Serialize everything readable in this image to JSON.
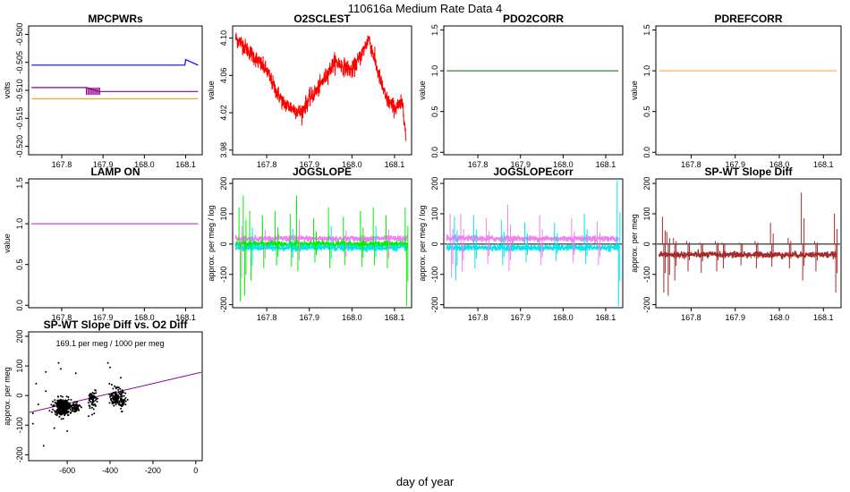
{
  "figure": {
    "suptitle": "110616a   Medium Rate Data 4",
    "xlabel": "day of year"
  },
  "chart_data": [
    {
      "id": "mpcpwrs",
      "type": "line",
      "title": "MPCPWRs",
      "ylabel": "volts",
      "xlim": [
        167.72,
        168.14
      ],
      "ylim": [
        -0.5215,
        -0.4985
      ],
      "xticks": [
        167.8,
        167.9,
        168.0,
        168.1
      ],
      "xtick_labels": [
        "167.8",
        "167.9",
        "168.0",
        "168.1"
      ],
      "yticks": [
        -0.52,
        -0.515,
        -0.51,
        -0.505,
        -0.5
      ],
      "ytick_labels": [
        "-0.520",
        "-0.515",
        "-0.510",
        "-0.505",
        "-0.500"
      ],
      "series": [
        {
          "name": "blue",
          "color": "#0000ff",
          "x": [
            167.727,
            167.9,
            168.098,
            168.1,
            168.13
          ],
          "y": [
            -0.5055,
            -0.5055,
            -0.5055,
            -0.5045,
            -0.5055
          ]
        },
        {
          "name": "purple",
          "color": "#8b008b",
          "x": [
            167.727,
            167.86,
            167.89,
            168.13
          ],
          "y": [
            -0.5095,
            -0.5095,
            -0.5102,
            -0.5102
          ]
        },
        {
          "name": "orange",
          "color": "#f4a62a",
          "x": [
            167.727,
            168.13
          ],
          "y": [
            -0.5115,
            -0.5115
          ]
        }
      ]
    },
    {
      "id": "o2sclest",
      "type": "line",
      "title": "O2SCLEST",
      "ylabel": "value",
      "xlim": [
        167.72,
        168.14
      ],
      "ylim": [
        3.975,
        4.113
      ],
      "xticks": [
        167.8,
        167.9,
        168.0,
        168.1
      ],
      "xtick_labels": [
        "167.8",
        "167.9",
        "168.0",
        "168.1"
      ],
      "yticks": [
        3.98,
        4.02,
        4.06,
        4.1
      ],
      "ytick_labels": [
        "3.98",
        "4.02",
        "4.06",
        "4.10"
      ],
      "series": [
        {
          "name": "O2SCLEST",
          "color": "#ff0000",
          "x": [
            167.727,
            167.74,
            167.76,
            167.78,
            167.8,
            167.82,
            167.84,
            167.86,
            167.88,
            167.9,
            167.92,
            167.94,
            167.96,
            167.98,
            168.0,
            168.02,
            168.04,
            168.06,
            168.08,
            168.1,
            168.12,
            168.127
          ],
          "y": [
            4.1,
            4.095,
            4.085,
            4.075,
            4.065,
            4.045,
            4.03,
            4.025,
            4.02,
            4.035,
            4.045,
            4.06,
            4.075,
            4.07,
            4.065,
            4.08,
            4.1,
            4.065,
            4.035,
            4.025,
            4.03,
            3.99
          ]
        }
      ]
    },
    {
      "id": "pdo2corr",
      "type": "line",
      "title": "PDO2CORR",
      "ylabel": "value",
      "xlim": [
        167.72,
        168.14
      ],
      "ylim": [
        -0.03,
        1.55
      ],
      "xticks": [
        167.8,
        167.9,
        168.0,
        168.1
      ],
      "xtick_labels": [
        "167.8",
        "167.9",
        "168.0",
        "168.1"
      ],
      "yticks": [
        0.0,
        0.5,
        1.0,
        1.5
      ],
      "ytick_labels": [
        "0.0",
        "0.5",
        "1.0",
        "1.5"
      ],
      "series": [
        {
          "name": "PDO2CORR",
          "color": "#006400",
          "x": [
            167.727,
            168.13
          ],
          "y": [
            1.0,
            1.0
          ]
        }
      ]
    },
    {
      "id": "pdrefcorr",
      "type": "line",
      "title": "PDREFCORR",
      "ylabel": "value",
      "xlim": [
        167.72,
        168.14
      ],
      "ylim": [
        -0.03,
        1.55
      ],
      "xticks": [
        167.8,
        167.9,
        168.0,
        168.1
      ],
      "xtick_labels": [
        "167.8",
        "167.9",
        "168.0",
        "168.1"
      ],
      "yticks": [
        0.0,
        0.5,
        1.0,
        1.5
      ],
      "ytick_labels": [
        "0.0",
        "0.5",
        "1.0",
        "1.5"
      ],
      "series": [
        {
          "name": "PDREFCORR",
          "color": "#f4a62a",
          "x": [
            167.727,
            168.13
          ],
          "y": [
            1.0,
            1.0
          ]
        }
      ]
    },
    {
      "id": "lampon",
      "type": "line",
      "title": "LAMP ON",
      "ylabel": "value",
      "xlim": [
        167.72,
        168.14
      ],
      "ylim": [
        -0.03,
        1.55
      ],
      "xticks": [
        167.8,
        167.9,
        168.0,
        168.1
      ],
      "xtick_labels": [
        "167.8",
        "167.9",
        "168.0",
        "168.1"
      ],
      "yticks": [
        0.0,
        0.5,
        1.0,
        1.5
      ],
      "ytick_labels": [
        "0.0",
        "0.5",
        "1.0",
        "1.5"
      ],
      "series": [
        {
          "name": "LAMP ON",
          "color": "#a020f0",
          "x": [
            167.727,
            168.13
          ],
          "y": [
            1.0,
            1.0
          ]
        }
      ]
    },
    {
      "id": "jogslope",
      "type": "line",
      "title": "JOGSLOPE",
      "ylabel": "approx. per meg / log",
      "xlim": [
        167.72,
        168.14
      ],
      "ylim": [
        -210,
        215
      ],
      "xticks": [
        167.8,
        167.9,
        168.0,
        168.1
      ],
      "xtick_labels": [
        "167.8",
        "167.9",
        "168.0",
        "168.1"
      ],
      "yticks": [
        -200,
        -100,
        0,
        100,
        200
      ],
      "ytick_labels": [
        "-200",
        "-100",
        "0",
        "100",
        "200"
      ],
      "baseline_series": [
        {
          "name": "violet",
          "color": "#ee82ee",
          "level": 18
        },
        {
          "name": "green",
          "color": "#00ee00",
          "level": 0
        },
        {
          "name": "cyan",
          "color": "#00e5ee",
          "level": -12
        }
      ],
      "spikes": [
        {
          "x": 167.735,
          "up": 120,
          "down": -190
        },
        {
          "x": 167.745,
          "up": 160,
          "down": -170
        },
        {
          "x": 167.76,
          "up": 110,
          "down": -120
        },
        {
          "x": 167.79,
          "up": 95,
          "down": -80
        },
        {
          "x": 167.82,
          "up": 110,
          "down": -70
        },
        {
          "x": 167.855,
          "up": 100,
          "down": -75
        },
        {
          "x": 167.87,
          "up": 160,
          "down": -90
        },
        {
          "x": 167.91,
          "up": 85,
          "down": -60
        },
        {
          "x": 167.945,
          "up": 120,
          "down": -80
        },
        {
          "x": 167.98,
          "up": 90,
          "down": -70
        },
        {
          "x": 168.02,
          "up": 110,
          "down": -75
        },
        {
          "x": 168.05,
          "up": 120,
          "down": -70
        },
        {
          "x": 168.08,
          "up": 95,
          "down": -80
        },
        {
          "x": 168.125,
          "up": 120,
          "down": -205
        }
      ]
    },
    {
      "id": "jogslopecorr",
      "type": "line",
      "title": "JOGSLOPEcorr",
      "ylabel": "approx. per meg / log",
      "xlim": [
        167.72,
        168.14
      ],
      "ylim": [
        -210,
        215
      ],
      "xticks": [
        167.8,
        167.9,
        168.0,
        168.1
      ],
      "xtick_labels": [
        "167.8",
        "167.9",
        "168.0",
        "168.1"
      ],
      "yticks": [
        -200,
        -100,
        0,
        100,
        200
      ],
      "ytick_labels": [
        "-200",
        "-100",
        "0",
        "100",
        "200"
      ],
      "hline": 0,
      "baseline_series": [
        {
          "name": "violet",
          "color": "#ee82ee",
          "level": 18
        },
        {
          "name": "cyan",
          "color": "#00e5ee",
          "level": -12
        }
      ],
      "spikes": [
        {
          "x": 167.735,
          "up": 100,
          "down": -110
        },
        {
          "x": 167.745,
          "up": 90,
          "down": -120
        },
        {
          "x": 167.76,
          "up": 100,
          "down": -90
        },
        {
          "x": 167.79,
          "up": 95,
          "down": -80
        },
        {
          "x": 167.82,
          "up": 85,
          "down": -65
        },
        {
          "x": 167.855,
          "up": 80,
          "down": -70
        },
        {
          "x": 167.87,
          "up": 130,
          "down": -90
        },
        {
          "x": 167.91,
          "up": 70,
          "down": -60
        },
        {
          "x": 167.945,
          "up": 95,
          "down": -70
        },
        {
          "x": 167.98,
          "up": 70,
          "down": -55
        },
        {
          "x": 168.02,
          "up": 85,
          "down": -60
        },
        {
          "x": 168.05,
          "up": 100,
          "down": -65
        },
        {
          "x": 168.08,
          "up": 75,
          "down": -70
        },
        {
          "x": 168.127,
          "up": 210,
          "down": -205
        }
      ]
    },
    {
      "id": "spwtdiff",
      "type": "line",
      "title": "SP-WT Slope Diff",
      "ylabel": "approx. per meg",
      "xlim": [
        167.72,
        168.14
      ],
      "ylim": [
        -210,
        215
      ],
      "xticks": [
        167.8,
        167.9,
        168.0,
        168.1
      ],
      "xtick_labels": [
        "167.8",
        "167.9",
        "168.0",
        "168.1"
      ],
      "yticks": [
        -200,
        -100,
        0,
        100,
        200
      ],
      "ytick_labels": [
        "-200",
        "-100",
        "0",
        "100",
        "200"
      ],
      "hline": 0,
      "baseline_series": [
        {
          "name": "diff",
          "color": "#a52a2a",
          "level": -35
        }
      ],
      "spikes": [
        {
          "x": 167.735,
          "up": 90,
          "down": -160
        },
        {
          "x": 167.745,
          "up": 40,
          "down": -170
        },
        {
          "x": 167.76,
          "up": 20,
          "down": -120
        },
        {
          "x": 167.79,
          "up": 10,
          "down": -90
        },
        {
          "x": 167.82,
          "up": 5,
          "down": -95
        },
        {
          "x": 167.855,
          "up": 10,
          "down": -90
        },
        {
          "x": 167.87,
          "up": 5,
          "down": -80
        },
        {
          "x": 167.91,
          "up": 5,
          "down": -70
        },
        {
          "x": 167.945,
          "up": 10,
          "down": -80
        },
        {
          "x": 167.98,
          "up": 70,
          "down": -75
        },
        {
          "x": 168.02,
          "up": 20,
          "down": -80
        },
        {
          "x": 168.05,
          "up": 170,
          "down": -120
        },
        {
          "x": 168.08,
          "up": 10,
          "down": -90
        },
        {
          "x": 168.125,
          "up": 100,
          "down": -160
        }
      ]
    },
    {
      "id": "scatter",
      "type": "scatter",
      "title": "SP-WT Slope Diff vs. O2 Diff",
      "ylabel": "approx. per meg",
      "xlim": [
        -780,
        30
      ],
      "ylim": [
        -220,
        215
      ],
      "xticks": [
        -600,
        -400,
        -200,
        0
      ],
      "xtick_labels": [
        "-600",
        "-400",
        "-200",
        "0"
      ],
      "yticks": [
        -200,
        -100,
        0,
        100,
        200
      ],
      "ytick_labels": [
        "-200",
        "-100",
        "0",
        "100",
        "200"
      ],
      "annotation": "169.1 per meg / 1000 per meg",
      "fit_line": {
        "color": "#8b008b",
        "x": [
          -780,
          30
        ],
        "y": [
          -57.5,
          79.5
        ]
      },
      "clusters": [
        {
          "cx": -620,
          "cy": -38,
          "sx": 20,
          "sy": 14,
          "n": 320
        },
        {
          "cx": -560,
          "cy": -40,
          "sx": 10,
          "sy": 8,
          "n": 60
        },
        {
          "cx": -480,
          "cy": -15,
          "sx": 10,
          "sy": 18,
          "n": 70
        },
        {
          "cx": -370,
          "cy": -5,
          "sx": 14,
          "sy": 14,
          "n": 130
        },
        {
          "cx": -340,
          "cy": -25,
          "sx": 8,
          "sy": 12,
          "n": 40
        }
      ],
      "outliers": [
        {
          "x": -760,
          "y": -95
        },
        {
          "x": -745,
          "y": 40
        },
        {
          "x": -700,
          "y": 80
        },
        {
          "x": -735,
          "y": -30
        },
        {
          "x": -640,
          "y": 110
        },
        {
          "x": -660,
          "y": -110
        },
        {
          "x": -600,
          "y": -120
        },
        {
          "x": -710,
          "y": -170
        },
        {
          "x": -410,
          "y": 110
        },
        {
          "x": -400,
          "y": 95
        },
        {
          "x": -560,
          "y": 75
        },
        {
          "x": -500,
          "y": -70
        },
        {
          "x": -350,
          "y": 60
        },
        {
          "x": -630,
          "y": 90
        },
        {
          "x": -700,
          "y": 15
        },
        {
          "x": -760,
          "y": -60
        }
      ]
    }
  ]
}
